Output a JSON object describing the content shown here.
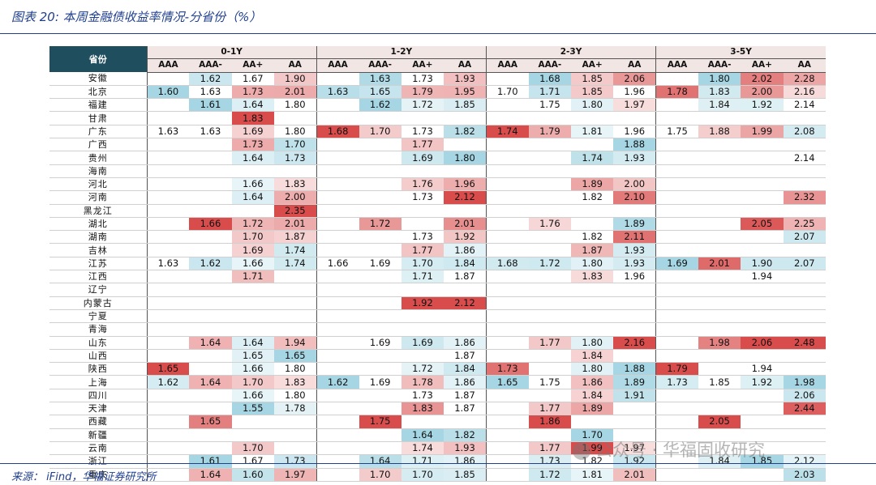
{
  "title": "图表 20:  本周金融债收益率情况-分省份（%）",
  "source": "来源：  iFind，华福证券研究所",
  "watermark": "公众号 · 华福固收研究",
  "header": {
    "province_label": "省份",
    "periods": [
      "0-1Y",
      "1-2Y",
      "2-3Y",
      "3-5Y"
    ],
    "ratings": [
      "AAA",
      "AAA-",
      "AA+",
      "AA"
    ]
  },
  "rows": [
    {
      "province": "安徽",
      "values": [
        "",
        "1.62",
        "1.67",
        "1.90",
        "",
        "1.63",
        "1.73",
        "1.93",
        "",
        "1.68",
        "1.85",
        "2.06",
        "",
        "1.80",
        "2.02",
        "2.28"
      ]
    },
    {
      "province": "北京",
      "values": [
        "1.60",
        "1.63",
        "1.73",
        "2.01",
        "1.63",
        "1.65",
        "1.79",
        "1.95",
        "1.70",
        "1.71",
        "1.85",
        "1.96",
        "1.78",
        "1.83",
        "2.00",
        "2.16"
      ]
    },
    {
      "province": "福建",
      "values": [
        "",
        "1.61",
        "1.64",
        "1.80",
        "",
        "1.62",
        "1.72",
        "1.85",
        "",
        "1.75",
        "1.80",
        "1.97",
        "",
        "1.84",
        "1.92",
        "2.14"
      ]
    },
    {
      "province": "甘肃",
      "values": [
        "",
        "",
        "1.83",
        "",
        "",
        "",
        "",
        "",
        "",
        "",
        "",
        "",
        "",
        "",
        "",
        ""
      ]
    },
    {
      "province": "广东",
      "values": [
        "1.63",
        "1.63",
        "1.69",
        "1.80",
        "1.68",
        "1.70",
        "1.73",
        "1.82",
        "1.74",
        "1.79",
        "1.81",
        "1.96",
        "1.75",
        "1.88",
        "1.99",
        "2.08"
      ]
    },
    {
      "province": "广西",
      "values": [
        "",
        "",
        "1.73",
        "1.70",
        "",
        "",
        "1.77",
        "",
        "",
        "",
        "",
        "1.88",
        "",
        "",
        "",
        ""
      ]
    },
    {
      "province": "贵州",
      "values": [
        "",
        "",
        "1.64",
        "1.73",
        "",
        "",
        "1.69",
        "1.80",
        "",
        "",
        "1.74",
        "1.93",
        "",
        "",
        "",
        "2.14"
      ]
    },
    {
      "province": "海南",
      "values": [
        "",
        "",
        "",
        "",
        "",
        "",
        "",
        "",
        "",
        "",
        "",
        "",
        "",
        "",
        "",
        ""
      ]
    },
    {
      "province": "河北",
      "values": [
        "",
        "",
        "1.66",
        "1.83",
        "",
        "",
        "1.76",
        "1.96",
        "",
        "",
        "1.89",
        "2.00",
        "",
        "",
        "",
        ""
      ]
    },
    {
      "province": "河南",
      "values": [
        "",
        "",
        "1.64",
        "2.00",
        "",
        "",
        "1.73",
        "2.12",
        "",
        "",
        "1.82",
        "2.10",
        "",
        "",
        "",
        "2.32"
      ]
    },
    {
      "province": "黑龙江",
      "values": [
        "",
        "",
        "",
        "2.35",
        "",
        "",
        "",
        "",
        "",
        "",
        "",
        "",
        "",
        "",
        "",
        ""
      ]
    },
    {
      "province": "湖北",
      "values": [
        "",
        "1.66",
        "1.72",
        "2.01",
        "",
        "1.72",
        "",
        "2.01",
        "",
        "1.76",
        "",
        "1.89",
        "",
        "",
        "2.05",
        "2.25"
      ]
    },
    {
      "province": "湖南",
      "values": [
        "",
        "",
        "1.70",
        "1.87",
        "",
        "",
        "1.73",
        "1.92",
        "",
        "",
        "1.82",
        "2.11",
        "",
        "",
        "",
        "2.07"
      ]
    },
    {
      "province": "吉林",
      "values": [
        "",
        "",
        "1.69",
        "1.74",
        "",
        "",
        "1.77",
        "1.86",
        "",
        "",
        "1.87",
        "1.93",
        "",
        "",
        "",
        ""
      ]
    },
    {
      "province": "江苏",
      "values": [
        "1.63",
        "1.62",
        "1.66",
        "1.74",
        "1.66",
        "1.69",
        "1.70",
        "1.84",
        "1.68",
        "1.72",
        "1.80",
        "1.93",
        "1.69",
        "2.01",
        "1.90",
        "2.07"
      ]
    },
    {
      "province": "江西",
      "values": [
        "",
        "",
        "1.71",
        "",
        "",
        "",
        "1.71",
        "1.87",
        "",
        "",
        "1.83",
        "1.96",
        "",
        "",
        "1.94",
        ""
      ]
    },
    {
      "province": "辽宁",
      "values": [
        "",
        "",
        "",
        "",
        "",
        "",
        "",
        "",
        "",
        "",
        "",
        "",
        "",
        "",
        "",
        ""
      ]
    },
    {
      "province": "内蒙古",
      "values": [
        "",
        "",
        "",
        "",
        "",
        "",
        "1.92",
        "2.12",
        "",
        "",
        "",
        "",
        "",
        "",
        "",
        ""
      ]
    },
    {
      "province": "宁夏",
      "values": [
        "",
        "",
        "",
        "",
        "",
        "",
        "",
        "",
        "",
        "",
        "",
        "",
        "",
        "",
        "",
        ""
      ]
    },
    {
      "province": "青海",
      "values": [
        "",
        "",
        "",
        "",
        "",
        "",
        "",
        "",
        "",
        "",
        "",
        "",
        "",
        "",
        "",
        ""
      ]
    },
    {
      "province": "山东",
      "values": [
        "",
        "1.64",
        "1.64",
        "1.94",
        "",
        "1.69",
        "1.69",
        "1.86",
        "",
        "1.77",
        "1.80",
        "2.16",
        "",
        "1.98",
        "2.06",
        "2.48"
      ]
    },
    {
      "province": "山西",
      "values": [
        "",
        "",
        "1.65",
        "1.65",
        "",
        "",
        "",
        "1.87",
        "",
        "",
        "1.84",
        "",
        "",
        "",
        "",
        ""
      ]
    },
    {
      "province": "陕西",
      "values": [
        "1.65",
        "",
        "1.66",
        "1.80",
        "",
        "",
        "1.72",
        "1.84",
        "1.73",
        "",
        "1.80",
        "1.88",
        "1.79",
        "",
        "1.94",
        ""
      ]
    },
    {
      "province": "上海",
      "values": [
        "1.62",
        "1.64",
        "1.70",
        "1.83",
        "1.62",
        "1.69",
        "1.78",
        "1.86",
        "1.65",
        "1.75",
        "1.86",
        "1.89",
        "1.73",
        "1.85",
        "1.92",
        "1.98"
      ]
    },
    {
      "province": "四川",
      "values": [
        "",
        "",
        "1.66",
        "1.80",
        "",
        "",
        "1.73",
        "1.87",
        "",
        "",
        "1.84",
        "1.91",
        "",
        "",
        "",
        "2.06"
      ]
    },
    {
      "province": "天津",
      "values": [
        "",
        "",
        "1.55",
        "1.78",
        "",
        "",
        "1.83",
        "1.87",
        "",
        "1.77",
        "1.89",
        "",
        "",
        "",
        "",
        "2.44"
      ]
    },
    {
      "province": "西藏",
      "values": [
        "",
        "1.65",
        "",
        "",
        "",
        "1.75",
        "",
        "",
        "",
        "1.86",
        "",
        "",
        "",
        "2.05",
        "",
        ""
      ]
    },
    {
      "province": "新疆",
      "values": [
        "",
        "",
        "",
        "",
        "",
        "",
        "1.64",
        "1.82",
        "",
        "",
        "1.70",
        "",
        "",
        "",
        "",
        ""
      ]
    },
    {
      "province": "云南",
      "values": [
        "",
        "",
        "1.70",
        "",
        "",
        "",
        "1.74",
        "1.93",
        "",
        "1.77",
        "1.99",
        "1.97",
        "",
        "",
        "",
        ""
      ]
    },
    {
      "province": "浙江",
      "values": [
        "",
        "1.61",
        "1.67",
        "1.73",
        "",
        "1.64",
        "1.71",
        "1.86",
        "",
        "1.73",
        "1.82",
        "1.92",
        "",
        "1.84",
        "1.85",
        "2.12"
      ]
    },
    {
      "province": "重庆",
      "values": [
        "",
        "1.64",
        "1.60",
        "1.97",
        "",
        "1.70",
        "1.70",
        "1.85",
        "",
        "1.72",
        "1.81",
        "2.01",
        "",
        "",
        "",
        "2.03"
      ]
    }
  ],
  "colors": {
    "header_dark": "#1f4e5f",
    "header_light": "#f2e6e4",
    "title_blue": "#1f3f8f",
    "low_scale": "#a6d6e3",
    "high_scale": "#d94c4c"
  }
}
